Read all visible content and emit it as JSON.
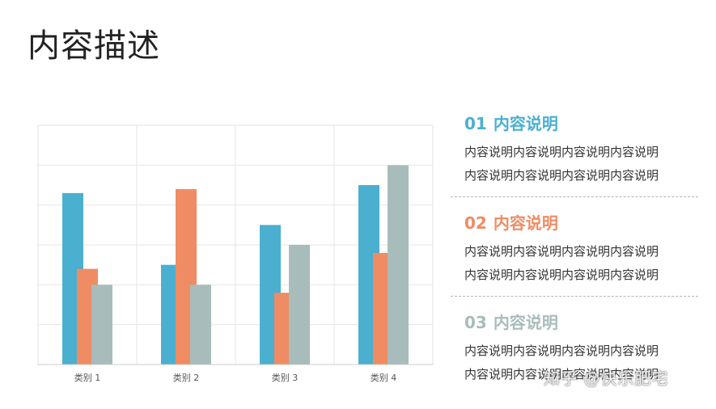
{
  "page": {
    "title": "内容描述"
  },
  "chart_data": {
    "type": "bar",
    "categories": [
      "类别 1",
      "类别 2",
      "类别 3",
      "类别 4"
    ],
    "series": [
      {
        "values": [
          4.3,
          2.5,
          3.5,
          4.5
        ],
        "color": "#4bafd0"
      },
      {
        "values": [
          2.4,
          4.4,
          1.8,
          2.8
        ],
        "color": "#ef8c64"
      },
      {
        "values": [
          2.0,
          2.0,
          3.0,
          5.0
        ],
        "color": "#a8bcbb"
      }
    ],
    "ylim": [
      0,
      6
    ],
    "grid": true,
    "legend": "none",
    "title": "",
    "xlabel": "",
    "ylabel": ""
  },
  "sections": [
    {
      "num": "01",
      "title": "内容说明",
      "color": "#4bafd0",
      "lines": [
        "内容说明内容说明内容说明内容说明",
        "内容说明内容说明内容说明内容说明"
      ]
    },
    {
      "num": "02",
      "title": "内容说明",
      "color": "#ef8c64",
      "lines": [
        "内容说明内容说明内容说明内容说明",
        "内容说明内容说明内容说明内容说明"
      ]
    },
    {
      "num": "03",
      "title": "内容说明",
      "color": "#a8bcbb",
      "lines": [
        "内容说明内容说明内容说明内容说明",
        "内容说明内容说明内容说明内容说明"
      ]
    }
  ],
  "watermark": "知乎 @快乐肥宅"
}
